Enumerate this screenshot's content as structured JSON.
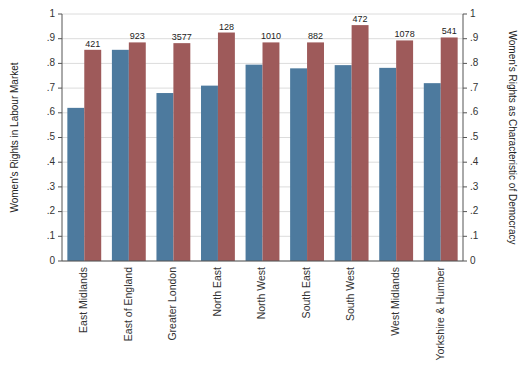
{
  "chart_data": {
    "type": "bar",
    "categories": [
      "East Midlands",
      "East of England",
      "Greater London",
      "North East",
      "North West",
      "South East",
      "South West",
      "West Midlands",
      "Yorkshire & Humber"
    ],
    "series": [
      {
        "color": "#4d7a9e",
        "values": [
          0.62,
          0.855,
          0.68,
          0.71,
          0.795,
          0.78,
          0.793,
          0.782,
          0.72
        ]
      },
      {
        "color": "#9e5a5a",
        "values": [
          0.855,
          0.885,
          0.882,
          0.925,
          0.885,
          0.885,
          0.955,
          0.893,
          0.905
        ],
        "counts": [
          421,
          923,
          3577,
          128,
          1010,
          882,
          472,
          1078,
          541
        ]
      }
    ],
    "ylabel": "Women's Rights in Labour Market",
    "y2label": "Women's Rights as Characteristic of Democracy",
    "ylim": [
      0,
      1
    ],
    "yticks": [
      0,
      {
        "value": 0.1,
        "label": ".1"
      },
      {
        "value": 0.2,
        "label": ".2"
      },
      {
        "value": 0.3,
        "label": ".3"
      },
      {
        "value": 0.4,
        "label": ".4"
      },
      {
        "value": 0.5,
        "label": ".5"
      },
      {
        "value": 0.6,
        "label": ".6"
      },
      {
        "value": 0.7,
        "label": ".7"
      },
      {
        "value": 0.8,
        "label": ".8"
      },
      {
        "value": 0.9,
        "label": ".9"
      },
      1
    ],
    "y2lim": [
      0,
      1
    ],
    "y2ticks": [
      0,
      {
        "value": 0.1,
        "label": ".1"
      },
      {
        "value": 0.2,
        "label": ".2"
      },
      {
        "value": 0.3,
        "label": ".3"
      },
      {
        "value": 0.4,
        "label": ".4"
      },
      {
        "value": 0.5,
        "label": ".5"
      },
      {
        "value": 0.6,
        "label": ".6"
      },
      {
        "value": 0.7,
        "label": ".7"
      },
      {
        "value": 0.8,
        "label": ".8"
      },
      {
        "value": 0.9,
        "label": ".9"
      },
      1
    ],
    "grid": true
  }
}
